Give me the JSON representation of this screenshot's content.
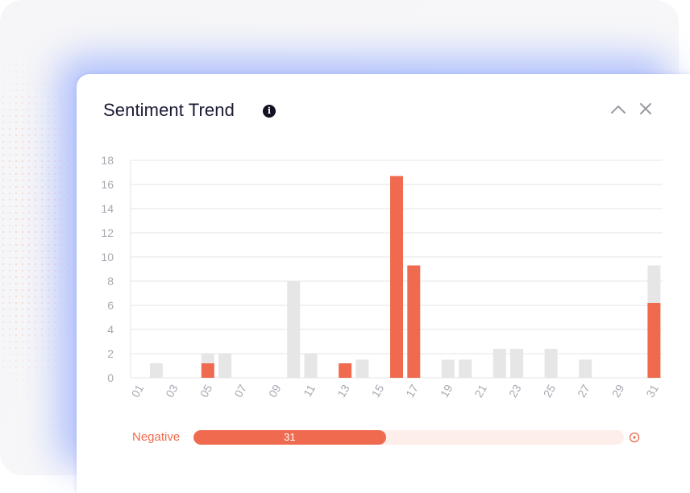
{
  "widget": {
    "title": "Sentiment Trend",
    "info_icon": "info-icon",
    "info_glyph": "i",
    "collapse_icon": "chevron-up-icon",
    "close_icon": "close-icon"
  },
  "colors": {
    "negative": "#ef6a4e",
    "other": "#e6e6e6",
    "track": "#fdeeea",
    "grid": "#e4e4e8",
    "tick_text": "#a8a8b3",
    "title_text": "#1a1a33"
  },
  "summary": {
    "label": "Negative",
    "value_text": "31",
    "fraction": 0.447,
    "end_icon": "target-icon"
  },
  "chart_data": {
    "type": "bar",
    "stacked": true,
    "title": "",
    "xlabel": "",
    "ylabel": "",
    "ylim": [
      0,
      18
    ],
    "yticks": [
      0,
      2,
      4,
      6,
      8,
      10,
      12,
      14,
      16,
      18
    ],
    "xtick_labels": [
      "01",
      "03",
      "05",
      "07",
      "09",
      "11",
      "13",
      "15",
      "17",
      "19",
      "21",
      "23",
      "25",
      "27",
      "29",
      "31"
    ],
    "grid": true,
    "legend": "none",
    "categories": [
      "01",
      "02",
      "03",
      "04",
      "05",
      "06",
      "07",
      "08",
      "09",
      "10",
      "11",
      "12",
      "13",
      "14",
      "15",
      "16",
      "17",
      "18",
      "19",
      "20",
      "21",
      "22",
      "23",
      "24",
      "25",
      "26",
      "27",
      "28",
      "29",
      "30",
      "31"
    ],
    "series": [
      {
        "name": "Negative",
        "color": "#ef6a4e",
        "values": [
          0,
          0,
          0,
          0,
          1.2,
          0,
          0,
          0,
          0,
          0,
          0,
          0,
          1.2,
          0,
          0,
          16.7,
          9.3,
          0,
          0,
          0,
          0,
          0,
          0,
          0,
          0,
          0,
          0,
          0,
          0,
          0,
          6.2
        ]
      },
      {
        "color": "#e6e6e6",
        "values": [
          0,
          1.2,
          0,
          0,
          0.8,
          2,
          0,
          0,
          0,
          8,
          2,
          0,
          0,
          1.5,
          0,
          0,
          0,
          0,
          1.5,
          1.5,
          0,
          2.4,
          2.4,
          0,
          2.4,
          0,
          1.5,
          0,
          0,
          0,
          3.1
        ]
      }
    ]
  }
}
